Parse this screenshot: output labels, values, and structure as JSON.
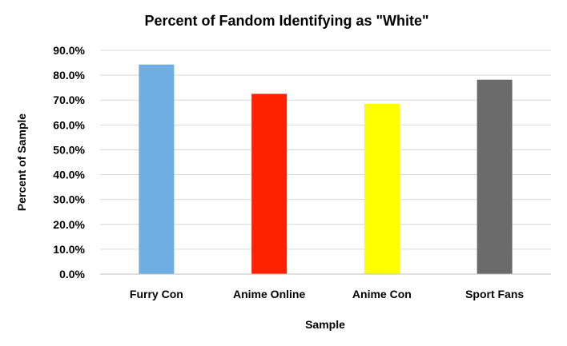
{
  "chart_data": {
    "type": "bar",
    "title": "Percent of Fandom Identifying as \"White\"",
    "xlabel": "Sample",
    "ylabel": "Percent of Sample",
    "categories": [
      "Furry Con",
      "Anime Online",
      "Anime Con",
      "Sport Fans"
    ],
    "values": [
      84.3,
      72.5,
      68.5,
      78.2
    ],
    "colors": [
      "#6fade2",
      "#ff2200",
      "#ffff00",
      "#6b6b6b"
    ],
    "ylim": [
      0,
      90
    ],
    "yticks": [
      0,
      10,
      20,
      30,
      40,
      50,
      60,
      70,
      80,
      90
    ],
    "ytick_format": "percent_1dp",
    "grid": true,
    "legend": "none"
  }
}
